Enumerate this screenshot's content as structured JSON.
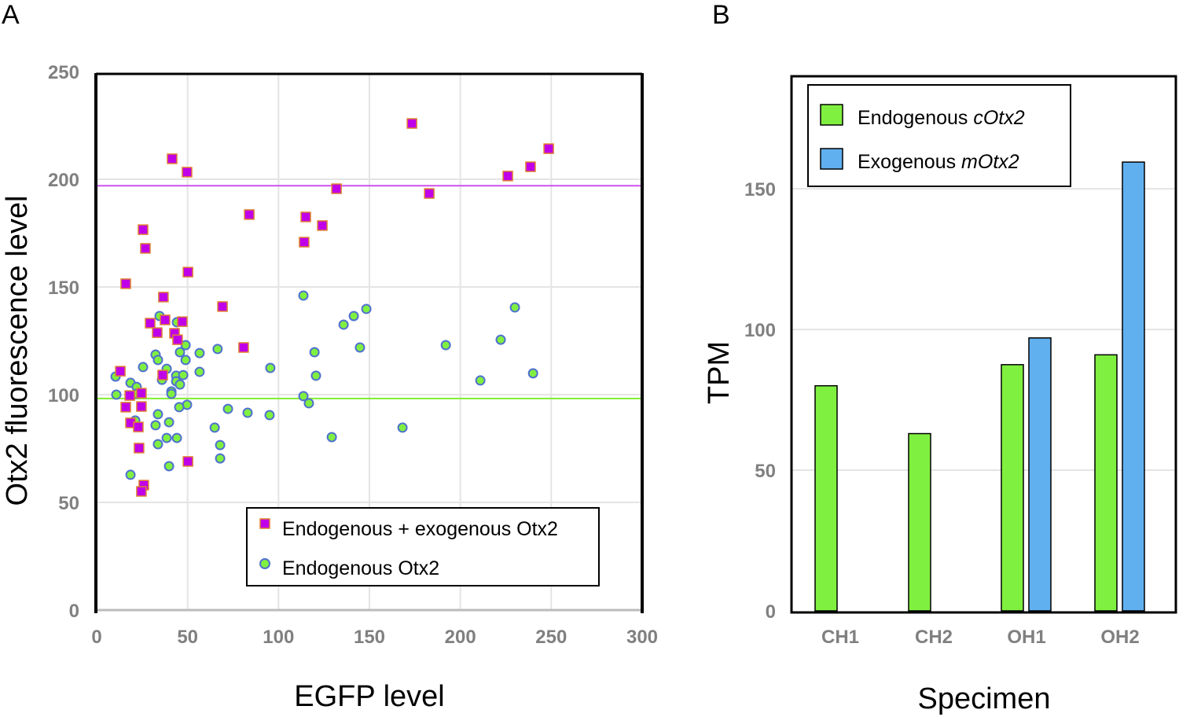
{
  "chart_data": [
    {
      "panel": "A",
      "type": "scatter",
      "xlabel": "EGFP level",
      "ylabel": "Otx2 fluorescence level",
      "xlim": [
        0,
        300
      ],
      "ylim": [
        0,
        250
      ],
      "xticks": [
        "0",
        "50",
        "100",
        "150",
        "200",
        "250",
        "300"
      ],
      "yticks": [
        "0",
        "50",
        "100",
        "150",
        "200",
        "250"
      ],
      "grid": true,
      "legend_position": "bottom-right",
      "reference_lines": [
        {
          "series": "Endogenous + exogenous Otx2",
          "y": 197,
          "color": "#d050f0"
        },
        {
          "series": "Endogenous Otx2",
          "y": 98.2,
          "color": "#80ee30"
        }
      ],
      "series": [
        {
          "name": "Endogenous + exogenous Otx2",
          "marker": "square",
          "color": "#c000e8",
          "edge_color": "#e08030",
          "points": [
            [
              173.4,
              225.9
            ],
            [
              41.5,
              209.5
            ],
            [
              49.7,
              203.3
            ],
            [
              248.6,
              214.2
            ],
            [
              238.6,
              205.8
            ],
            [
              226.1,
              201.5
            ],
            [
              182.9,
              193.4
            ],
            [
              131.9,
              195.6
            ],
            [
              83.9,
              183.6
            ],
            [
              115,
              182.5
            ],
            [
              124.1,
              178.5
            ],
            [
              25.5,
              176.6
            ],
            [
              26.8,
              167.9
            ],
            [
              114.1,
              170.8
            ],
            [
              50.2,
              156.9
            ],
            [
              16,
              151.5
            ],
            [
              69.2,
              140.9
            ],
            [
              36.7,
              145.3
            ],
            [
              29.4,
              133.2
            ],
            [
              37.6,
              134.7
            ],
            [
              33.3,
              128.8
            ],
            [
              47.1,
              133.9
            ],
            [
              42.8,
              128.5
            ],
            [
              44.5,
              125.5
            ],
            [
              80.8,
              121.9
            ],
            [
              13,
              110.9
            ],
            [
              36.3,
              109.1
            ],
            [
              18.2,
              99.6
            ],
            [
              24.6,
              100.7
            ],
            [
              16,
              94.2
            ],
            [
              24.6,
              94.5
            ],
            [
              18.6,
              86.9
            ],
            [
              22.9,
              85
            ],
            [
              23.3,
              75.2
            ],
            [
              50.2,
              69
            ],
            [
              25.9,
              58
            ],
            [
              24.6,
              55.1
            ]
          ]
        },
        {
          "name": "Endogenous Otx2",
          "marker": "circle",
          "color": "#80f040",
          "edge_color": "#5070d0",
          "points": [
            [
              34.6,
              136.5
            ],
            [
              44.1,
              133.6
            ],
            [
              48.9,
              123
            ],
            [
              45.8,
              119.7
            ],
            [
              56.6,
              119.3
            ],
            [
              66.5,
              121.2
            ],
            [
              32.4,
              118.6
            ],
            [
              33.7,
              116.1
            ],
            [
              48.9,
              116.1
            ],
            [
              25.5,
              112.8
            ],
            [
              38.5,
              112
            ],
            [
              10.4,
              108.4
            ],
            [
              35.9,
              106.9
            ],
            [
              43.7,
              108.8
            ],
            [
              47.6,
              109.1
            ],
            [
              56.6,
              110.6
            ],
            [
              43.7,
              106.2
            ],
            [
              45.8,
              104.7
            ],
            [
              18.6,
              105.5
            ],
            [
              22,
              103.6
            ],
            [
              10.8,
              100
            ],
            [
              22,
              100.4
            ],
            [
              41.1,
              101.5
            ],
            [
              41.1,
              100.4
            ],
            [
              49.7,
              95.3
            ],
            [
              45.4,
              94.2
            ],
            [
              72.2,
              93.4
            ],
            [
              83,
              91.6
            ],
            [
              33.7,
              90.9
            ],
            [
              21.2,
              88
            ],
            [
              39.8,
              87.2
            ],
            [
              32.4,
              85.8
            ],
            [
              64.9,
              84.7
            ],
            [
              38.5,
              79.9
            ],
            [
              44.1,
              79.9
            ],
            [
              33.7,
              77
            ],
            [
              67.9,
              76.6
            ],
            [
              67.9,
              70.4
            ],
            [
              39.8,
              66.8
            ],
            [
              18.6,
              62.8
            ],
            [
              95.1,
              90.5
            ],
            [
              113.7,
              99.3
            ],
            [
              116.7,
              96
            ],
            [
              120.6,
              108.8
            ],
            [
              119.8,
              119.7
            ],
            [
              113.7,
              146
            ],
            [
              135.8,
              132.5
            ],
            [
              141.4,
              136.5
            ],
            [
              148.3,
              139.8
            ],
            [
              144.8,
              121.9
            ],
            [
              129.3,
              80.3
            ],
            [
              168.2,
              84.7
            ],
            [
              192,
              123
            ],
            [
              211,
              106.6
            ],
            [
              222.2,
              125.5
            ],
            [
              230,
              140.5
            ],
            [
              240,
              109.9
            ],
            [
              95.5,
              112.4
            ]
          ]
        }
      ]
    },
    {
      "panel": "B",
      "type": "bar",
      "xlabel": "Specimen",
      "ylabel": "TPM",
      "categories": [
        "CH1",
        "CH2",
        "OH1",
        "OH2"
      ],
      "ylim": [
        0,
        190
      ],
      "yticks": [
        "0",
        "50",
        "100",
        "150"
      ],
      "grid": true,
      "legend_position": "top-left",
      "series": [
        {
          "name": "Endogenous",
          "name_italic": "cOtx2",
          "color": "#80f040",
          "values": [
            80,
            63,
            87.5,
            91
          ]
        },
        {
          "name": "Exogenous",
          "name_italic": "mOtx2",
          "color": "#60b0f0",
          "values": [
            null,
            null,
            97,
            159.5
          ]
        }
      ]
    }
  ]
}
